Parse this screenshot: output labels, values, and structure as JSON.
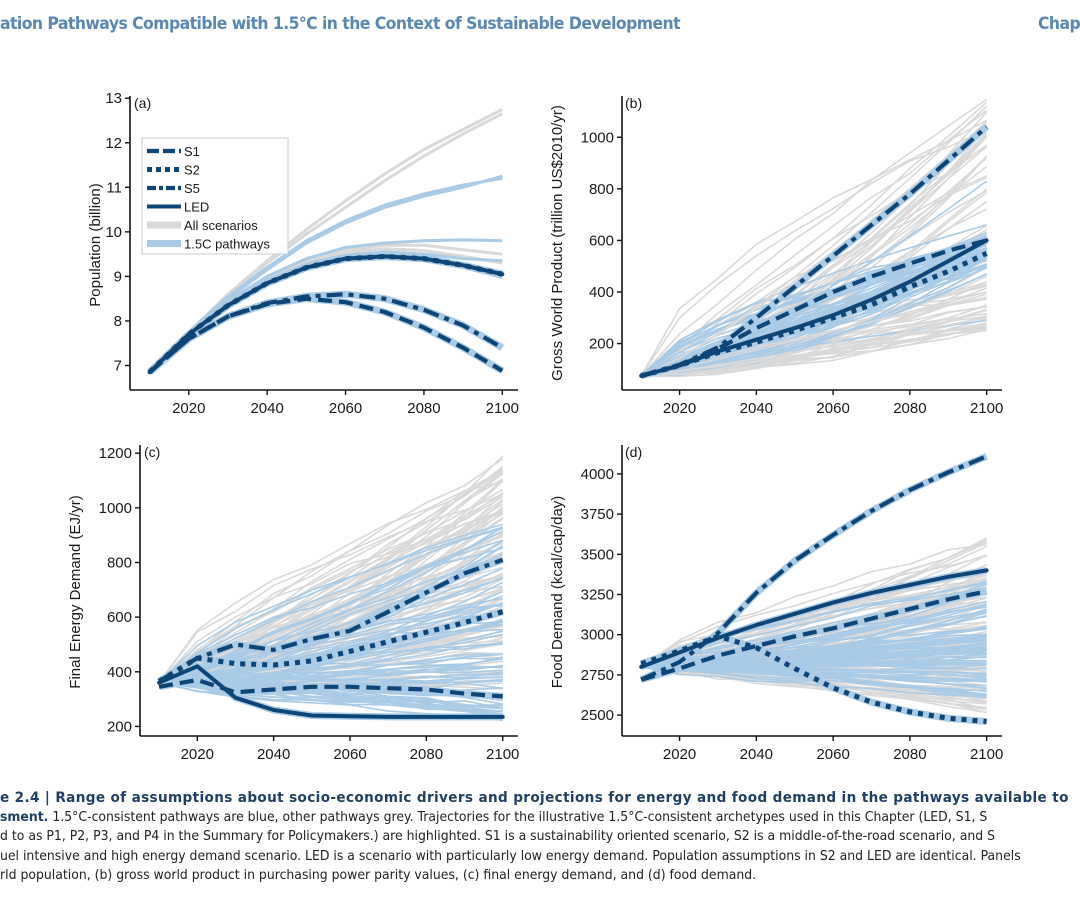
{
  "header": {
    "title": "ation Pathways Compatible with 1.5°C in the Context of Sustainable Development",
    "chapter": "Chap"
  },
  "colors": {
    "highlight": "#0d4577",
    "pathway_1p5": "#a9cbe6",
    "all_scenarios": "#d9d9d9",
    "header_text": "#5a87b3",
    "caption_bold": "#1f3f66"
  },
  "legend": {
    "items": [
      {
        "label": "S1",
        "style": "dashed"
      },
      {
        "label": "S2",
        "style": "dotted"
      },
      {
        "label": "S5",
        "style": "dashdot"
      },
      {
        "label": "LED",
        "style": "solid"
      },
      {
        "label": "All scenarios",
        "style": "grey"
      },
      {
        "label": "1.5C pathways",
        "style": "lightblue"
      }
    ]
  },
  "chart_data": [
    {
      "type": "line",
      "panel_label": "(a)",
      "title": "",
      "xlabel": "",
      "ylabel": "Population (billion)",
      "xlim": [
        2005,
        2104
      ],
      "ylim": [
        6.45,
        13.05
      ],
      "xticks": [
        2020,
        2040,
        2060,
        2080,
        2100
      ],
      "yticks": [
        7,
        8,
        9,
        10,
        11,
        12,
        13
      ],
      "legend": "top-left",
      "grid": false,
      "x": [
        2010,
        2020,
        2030,
        2040,
        2050,
        2060,
        2070,
        2080,
        2090,
        2100
      ],
      "series": [
        {
          "name": "S1",
          "style": "dashed",
          "values": [
            6.85,
            7.6,
            8.1,
            8.38,
            8.5,
            8.42,
            8.2,
            7.85,
            7.4,
            6.88
          ]
        },
        {
          "name": "S2",
          "style": "dotted",
          "values": [
            6.85,
            7.7,
            8.35,
            8.85,
            9.2,
            9.4,
            9.45,
            9.4,
            9.25,
            9.05
          ]
        },
        {
          "name": "S5",
          "style": "dashdot",
          "values": [
            6.85,
            7.6,
            8.1,
            8.4,
            8.55,
            8.6,
            8.5,
            8.25,
            7.9,
            7.4
          ]
        },
        {
          "name": "LED",
          "style": "solid",
          "values": [
            6.85,
            7.7,
            8.35,
            8.85,
            9.2,
            9.4,
            9.45,
            9.4,
            9.25,
            9.05
          ]
        }
      ],
      "background": {
        "all_scenarios": [
          [
            6.9,
            7.75,
            8.6,
            9.35,
            10.05,
            10.7,
            11.3,
            11.85,
            12.3,
            12.75
          ],
          [
            6.9,
            7.75,
            8.55,
            9.3,
            9.95,
            10.55,
            11.15,
            11.7,
            12.2,
            12.65
          ],
          [
            6.9,
            7.72,
            8.4,
            8.95,
            9.35,
            9.6,
            9.7,
            9.7,
            9.6,
            9.5
          ],
          [
            6.9,
            7.72,
            8.4,
            8.95,
            9.3,
            9.55,
            9.62,
            9.58,
            9.45,
            9.3
          ],
          [
            6.88,
            7.62,
            8.15,
            8.45,
            8.6,
            8.65,
            8.55,
            8.3,
            7.95,
            7.45
          ]
        ],
        "pathways_1p5": [
          [
            6.9,
            7.75,
            8.55,
            9.2,
            9.8,
            10.25,
            10.6,
            10.85,
            11.05,
            11.2
          ],
          [
            6.9,
            7.75,
            8.5,
            9.15,
            9.75,
            10.2,
            10.55,
            10.8,
            11.0,
            11.25
          ],
          [
            6.9,
            7.73,
            8.45,
            9.0,
            9.4,
            9.65,
            9.75,
            9.8,
            9.82,
            9.8
          ],
          [
            6.88,
            7.7,
            8.35,
            8.85,
            9.2,
            9.4,
            9.45,
            9.4,
            9.25,
            9.05
          ],
          [
            6.88,
            7.68,
            8.3,
            8.8,
            9.15,
            9.35,
            9.4,
            9.35,
            9.2,
            8.98
          ],
          [
            6.88,
            7.72,
            8.4,
            8.92,
            9.28,
            9.48,
            9.55,
            9.5,
            9.4,
            9.35
          ],
          [
            6.85,
            7.6,
            8.1,
            8.38,
            8.5,
            8.42,
            8.2,
            7.85,
            7.4,
            6.9
          ],
          [
            6.85,
            7.6,
            8.1,
            8.4,
            8.55,
            8.6,
            8.5,
            8.25,
            7.9,
            7.4
          ]
        ]
      }
    },
    {
      "type": "line",
      "panel_label": "(b)",
      "title": "",
      "xlabel": "",
      "ylabel": "Gross World Product (trillion US$2010/yr)",
      "xlim": [
        2005,
        2104
      ],
      "ylim": [
        20,
        1160
      ],
      "xticks": [
        2020,
        2040,
        2060,
        2080,
        2100
      ],
      "yticks": [
        200,
        400,
        600,
        800,
        1000
      ],
      "grid": false,
      "x": [
        2010,
        2020,
        2030,
        2040,
        2050,
        2060,
        2070,
        2080,
        2090,
        2100
      ],
      "series": [
        {
          "name": "S1",
          "style": "dashed",
          "values": [
            75,
            115,
            180,
            260,
            330,
            400,
            460,
            510,
            560,
            600
          ]
        },
        {
          "name": "S2",
          "style": "dotted",
          "values": [
            75,
            115,
            165,
            205,
            250,
            300,
            350,
            420,
            480,
            550
          ]
        },
        {
          "name": "S5",
          "style": "dashdot",
          "values": [
            75,
            118,
            185,
            300,
            420,
            540,
            660,
            780,
            910,
            1040
          ]
        },
        {
          "name": "LED",
          "style": "solid",
          "values": [
            75,
            115,
            170,
            215,
            260,
            310,
            370,
            440,
            520,
            600
          ]
        }
      ],
      "background": {
        "envelope_all": {
          "low_2100": 250,
          "high_2100": 1140
        },
        "envelope_1p5": {
          "low_2100": 270,
          "high_2100": 1100
        },
        "notable_1p5_end_values": [
          830,
          660,
          630,
          500,
          470,
          290
        ],
        "notable_grey_end_values": [
          920,
          1120,
          1060,
          440,
          400,
          380,
          350,
          330,
          300,
          260
        ]
      }
    },
    {
      "type": "line",
      "panel_label": "(c)",
      "title": "",
      "xlabel": "",
      "ylabel": "Final Energy Demand (EJ/yr)",
      "xlim": [
        2005,
        2104
      ],
      "ylim": [
        165,
        1230
      ],
      "xticks": [
        2020,
        2040,
        2060,
        2080,
        2100
      ],
      "yticks": [
        200,
        400,
        600,
        800,
        1000,
        1200
      ],
      "grid": false,
      "x": [
        2010,
        2020,
        2030,
        2040,
        2050,
        2060,
        2070,
        2080,
        2090,
        2100
      ],
      "series": [
        {
          "name": "S1",
          "style": "dashed",
          "values": [
            345,
            370,
            325,
            335,
            345,
            345,
            340,
            335,
            320,
            310
          ]
        },
        {
          "name": "S2",
          "style": "dotted",
          "values": [
            365,
            450,
            430,
            425,
            440,
            475,
            510,
            545,
            580,
            620
          ]
        },
        {
          "name": "S5",
          "style": "dashdot",
          "values": [
            365,
            450,
            500,
            480,
            520,
            550,
            620,
            690,
            760,
            810
          ]
        },
        {
          "name": "LED",
          "style": "solid",
          "values": [
            360,
            420,
            305,
            260,
            240,
            237,
            235,
            235,
            235,
            235
          ]
        }
      ],
      "background": {
        "envelope_all": {
          "low_2100": 280,
          "high_2100": 1190
        },
        "envelope_1p5": {
          "low_2100": 230,
          "high_2100": 950
        }
      }
    },
    {
      "type": "line",
      "panel_label": "(d)",
      "title": "",
      "xlabel": "",
      "ylabel": "Food Demand (kcal/cap/day)",
      "xlim": [
        2005,
        2104
      ],
      "ylim": [
        2370,
        4180
      ],
      "xticks": [
        2020,
        2040,
        2060,
        2080,
        2100
      ],
      "yticks": [
        2500,
        2750,
        3000,
        3250,
        3500,
        3750,
        4000
      ],
      "grid": false,
      "x": [
        2010,
        2020,
        2030,
        2040,
        2050,
        2060,
        2070,
        2080,
        2090,
        2100
      ],
      "series": [
        {
          "name": "S1",
          "style": "dashed",
          "values": [
            2720,
            2790,
            2870,
            2930,
            2990,
            3040,
            3100,
            3160,
            3220,
            3270
          ]
        },
        {
          "name": "S2",
          "style": "dotted",
          "values": [
            2820,
            2900,
            2990,
            2920,
            2790,
            2670,
            2580,
            2520,
            2480,
            2460
          ]
        },
        {
          "name": "S5",
          "style": "dashdot",
          "values": [
            2720,
            2830,
            3010,
            3260,
            3460,
            3620,
            3770,
            3900,
            4010,
            4110
          ]
        },
        {
          "name": "LED",
          "style": "solid",
          "values": [
            2800,
            2890,
            2980,
            3060,
            3130,
            3200,
            3260,
            3310,
            3360,
            3400
          ]
        }
      ],
      "background": {
        "envelope_all": {
          "low_2100": 2510,
          "high_2100": 3600
        },
        "envelope_1p5": {
          "low_2100": 2600,
          "high_2100": 3330
        }
      }
    }
  ],
  "caption": {
    "line1_bold": "e 2.4 |  Range of assumptions about socio-economic drivers and projections for energy and food demand in the pathways available to",
    "line2_bold": "sment.",
    "line2_rest": " 1.5°C-consistent pathways are blue, other pathways grey. Trajectories for the illustrative 1.5°C-consistent archetypes used in this Chapter (LED, S1, S",
    "line3": "d to as P1, P2, P3, and P4 in the Summary for Policymakers.) are highlighted. S1 is a sustainability oriented scenario, S2 is a middle-of-the-road scenario, and S",
    "line4": "uel intensive and high energy demand scenario. LED is a scenario with particularly low energy demand. Population assumptions in S2 and LED are identical. Panels",
    "line5": "rld population, (b) gross world product in purchasing power parity values, (c) final energy demand, and (d) food demand."
  }
}
